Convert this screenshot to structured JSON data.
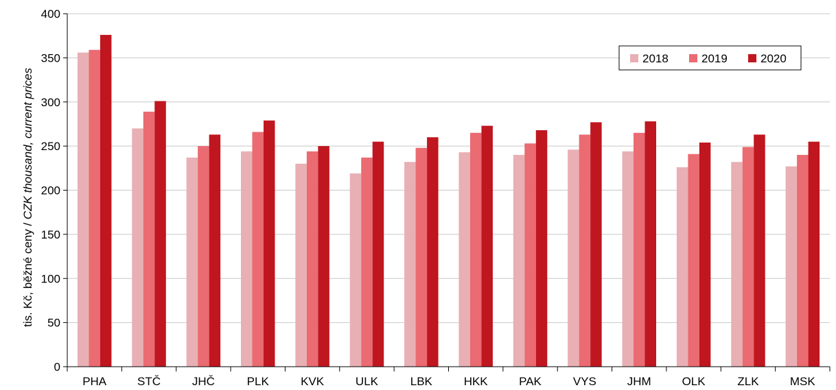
{
  "chart_data": {
    "type": "bar",
    "title": "",
    "ylabel": "tis. Kč, běžné ceny / ",
    "ylabel_italic": "CZK thousand, current prices",
    "xlabel": "",
    "ylim": [
      0,
      400
    ],
    "yticks": [
      0,
      50,
      100,
      150,
      200,
      250,
      300,
      350,
      400
    ],
    "grid": true,
    "legend_position": "top-right",
    "categories": [
      "PHA",
      "STČ",
      "JHČ",
      "PLK",
      "KVK",
      "ULK",
      "LBK",
      "HKK",
      "PAK",
      "VYS",
      "JHM",
      "OLK",
      "ZLK",
      "MSK"
    ],
    "series": [
      {
        "name": "2018",
        "color": "#e8b0b4",
        "values": [
          356,
          270,
          237,
          244,
          230,
          219,
          232,
          243,
          240,
          246,
          244,
          226,
          232,
          227
        ]
      },
      {
        "name": "2019",
        "color": "#ea6b71",
        "values": [
          359,
          289,
          250,
          266,
          244,
          237,
          248,
          265,
          253,
          263,
          265,
          241,
          249,
          240
        ]
      },
      {
        "name": "2020",
        "color": "#c0161f",
        "values": [
          376,
          301,
          263,
          279,
          250,
          255,
          260,
          273,
          268,
          277,
          278,
          254,
          263,
          255
        ]
      }
    ]
  }
}
